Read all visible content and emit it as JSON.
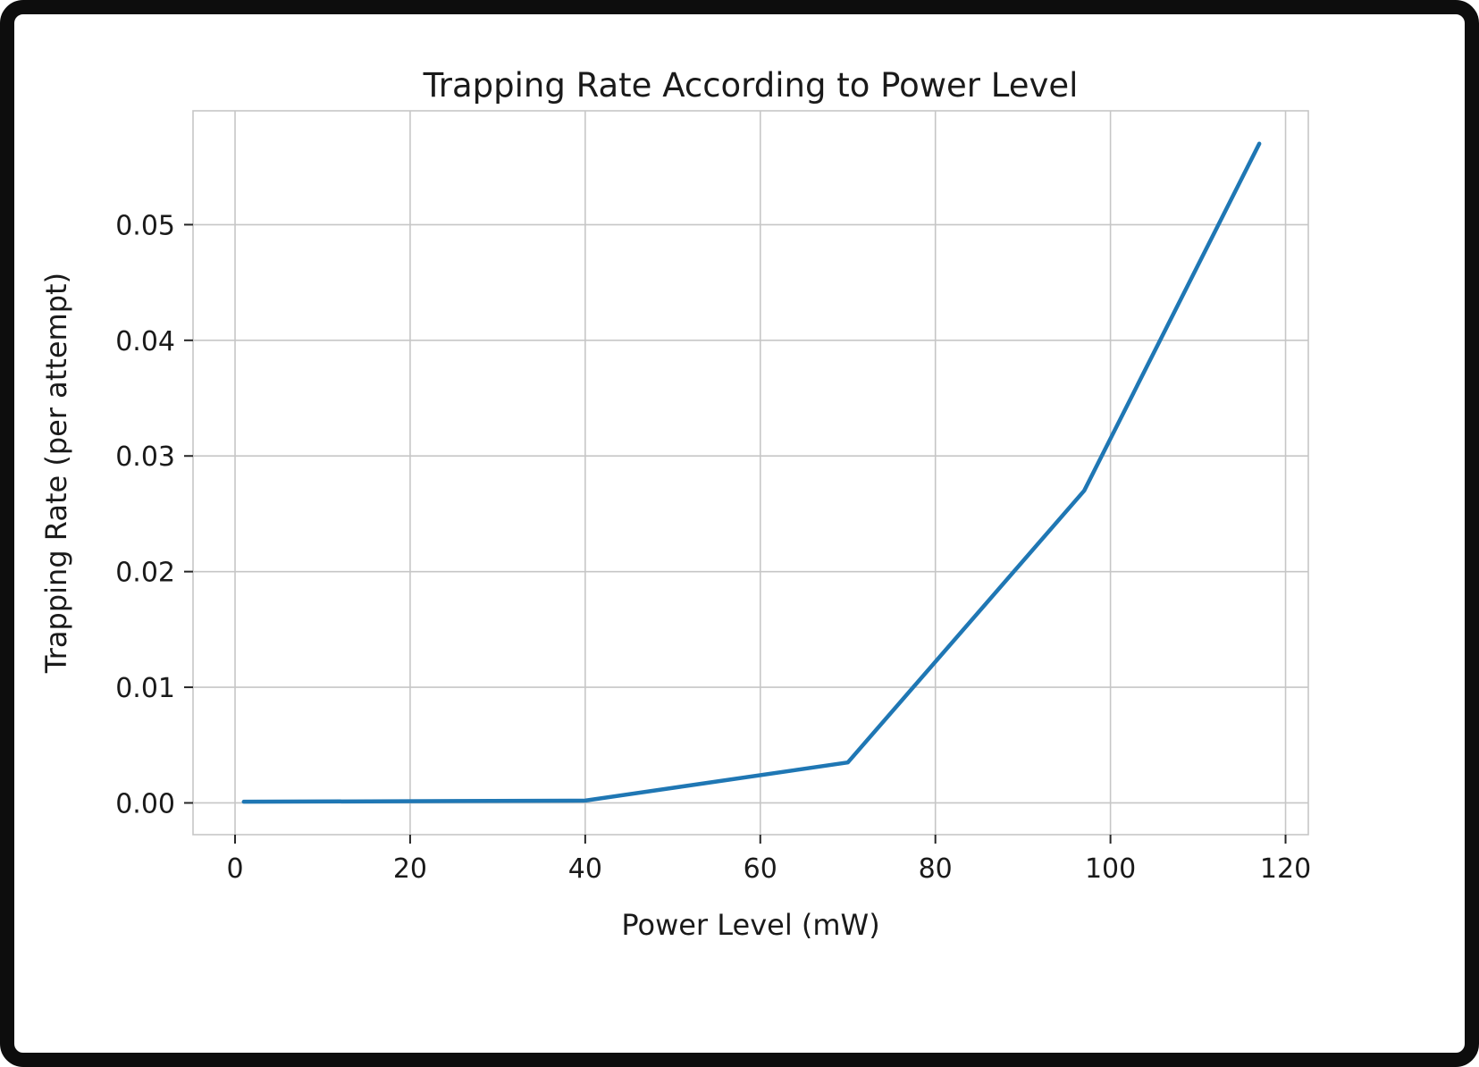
{
  "chart": {
    "title": "Trapping Rate According to Power Level",
    "xlabel": "Power Level (mW)",
    "ylabel": "Trapping Rate (per attempt)"
  },
  "chart_data": {
    "type": "line",
    "title": "Trapping Rate According to Power Level",
    "xlabel": "Power Level (mW)",
    "ylabel": "Trapping Rate (per attempt)",
    "x": [
      1,
      40,
      70,
      97,
      117
    ],
    "y": [
      0.0001,
      0.0002,
      0.0035,
      0.027,
      0.057
    ],
    "xlim": [
      -4.8,
      122.6
    ],
    "ylim": [
      -0.002745,
      0.059845
    ],
    "xticks": [
      0,
      20,
      40,
      60,
      80,
      100,
      120
    ],
    "xtick_labels": [
      "0",
      "20",
      "40",
      "60",
      "80",
      "100",
      "120"
    ],
    "yticks": [
      0.0,
      0.01,
      0.02,
      0.03,
      0.04,
      0.05
    ],
    "ytick_labels": [
      "0.00",
      "0.01",
      "0.02",
      "0.03",
      "0.04",
      "0.05"
    ],
    "grid": true,
    "legend_position": "none",
    "line_color": "#1f77b4",
    "grid_color": "#c6c6c6",
    "spine_color": "#c6c6c6",
    "tick_color": "#262626",
    "text_color": "#1a1a1a",
    "background_color": "#ffffff"
  }
}
